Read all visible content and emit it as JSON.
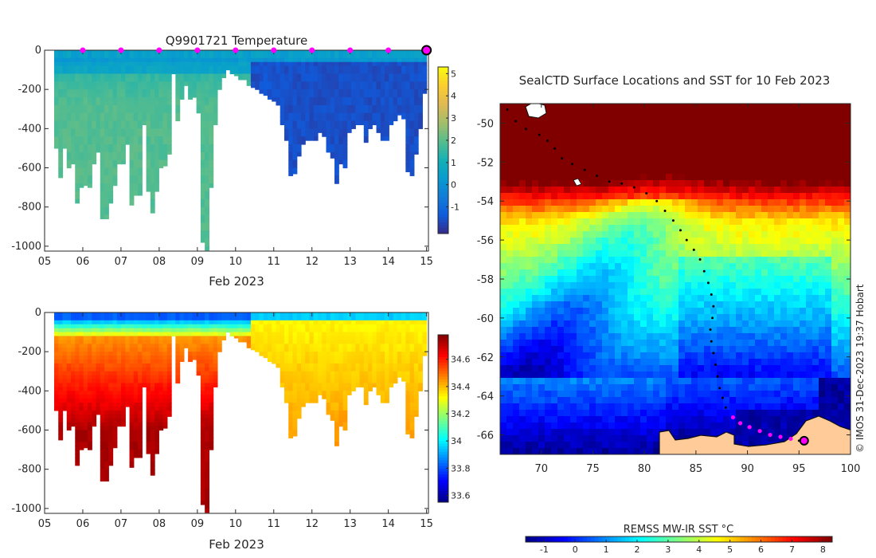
{
  "chart_data": [
    {
      "type": "heatmap",
      "title": "Q9901721  Temperature",
      "xlabel": "Feb 2023",
      "ylabel": "",
      "x_ticks": [
        "05",
        "06",
        "07",
        "08",
        "09",
        "10",
        "11",
        "12",
        "13",
        "14",
        "15"
      ],
      "xlim": [
        5,
        15.05
      ],
      "y_ticks": [
        0,
        -200,
        -400,
        -600,
        -800,
        -1000
      ],
      "ylim": [
        -1025,
        0
      ],
      "colorbar_ticks": [
        5,
        4,
        3,
        2,
        1,
        0,
        -1
      ],
      "colorbar_range": [
        -2.2,
        5.3
      ],
      "marker_days": [
        6,
        7,
        8,
        9,
        10,
        11,
        12,
        13,
        14
      ],
      "last_position_day": 15,
      "profile_count": 96,
      "max_depth_profile": [
        -500,
        -650,
        -500,
        -600,
        -580,
        -780,
        -700,
        -690,
        -700,
        -580,
        -520,
        -860,
        -860,
        -780,
        -690,
        -580,
        -580,
        -480,
        -790,
        -740,
        -740,
        -380,
        -720,
        -830,
        -720,
        -600,
        -590,
        -530,
        -120,
        -360,
        -250,
        -180,
        -250,
        -240,
        -320,
        -980,
        -1020,
        -700,
        -380,
        -200,
        -140,
        -100,
        -120,
        -130,
        -150,
        -150,
        -180,
        -190,
        -200,
        -220,
        -230,
        -250,
        -260,
        -280,
        -380,
        -460,
        -640,
        -630,
        -540,
        -480,
        -460,
        -460,
        -460,
        -420,
        -440,
        -520,
        -550,
        -680,
        -580,
        -600,
        -420,
        -400,
        -380,
        -380,
        -470,
        -400,
        -380,
        -420,
        -460,
        -460,
        -380,
        -360,
        -330,
        -350,
        -620,
        -640,
        -530,
        -400,
        -220
      ]
    },
    {
      "type": "heatmap",
      "title": "",
      "xlabel": "Feb 2023",
      "ylabel": "",
      "x_ticks": [
        "05",
        "06",
        "07",
        "08",
        "09",
        "10",
        "11",
        "12",
        "13",
        "14",
        "15"
      ],
      "xlim": [
        5,
        15.05
      ],
      "y_ticks": [
        0,
        -200,
        -400,
        -600,
        -800,
        -1000
      ],
      "ylim": [
        -1025,
        0
      ],
      "colorbar_ticks": [
        34.6,
        34.4,
        34.2,
        34,
        33.8,
        33.6
      ],
      "colorbar_range": [
        33.55,
        34.78
      ]
    },
    {
      "type": "heatmap",
      "title": "SealCTD Surface Locations and SST for 10 Feb 2023",
      "xlabel": "",
      "ylabel": "",
      "x_ticks": [
        70,
        75,
        80,
        85,
        90,
        95,
        100
      ],
      "xlim": [
        66,
        100
      ],
      "y_ticks": [
        -50,
        -52,
        -54,
        -56,
        -58,
        -60,
        -62,
        -64,
        -66
      ],
      "ylim": [
        -67,
        -49
      ],
      "colorbar_label": "REMSS MW-IR SST °C",
      "colorbar_ticks": [
        -1,
        0,
        1,
        2,
        3,
        4,
        5,
        6,
        7,
        8
      ],
      "colorbar_range": [
        -1.6,
        8.3
      ],
      "credit": "© IMOS 31-Dec-2023 19:37 Hobart",
      "track": [
        [
          66.7,
          -49.3
        ],
        [
          67.5,
          -49.9
        ],
        [
          68.5,
          -50.3
        ],
        [
          69.8,
          -50.6
        ],
        [
          70.6,
          -50.9
        ],
        [
          71.3,
          -51.3
        ],
        [
          72.0,
          -51.8
        ],
        [
          73.0,
          -52.1
        ],
        [
          74.2,
          -52.4
        ],
        [
          75.4,
          -52.7
        ],
        [
          76.6,
          -53.0
        ],
        [
          77.8,
          -53.1
        ],
        [
          79.0,
          -53.3
        ],
        [
          80.2,
          -53.6
        ],
        [
          81.2,
          -54.0
        ],
        [
          82.0,
          -54.5
        ],
        [
          82.8,
          -55.0
        ],
        [
          83.5,
          -55.5
        ],
        [
          84.1,
          -56.0
        ],
        [
          84.8,
          -56.5
        ],
        [
          85.4,
          -57.0
        ],
        [
          85.8,
          -57.6
        ],
        [
          86.2,
          -58.2
        ],
        [
          86.5,
          -58.8
        ],
        [
          86.7,
          -59.4
        ],
        [
          86.6,
          -60.0
        ],
        [
          86.4,
          -60.6
        ],
        [
          86.5,
          -61.2
        ],
        [
          86.7,
          -61.8
        ],
        [
          86.9,
          -62.4
        ],
        [
          87.1,
          -63.0
        ],
        [
          87.3,
          -63.6
        ],
        [
          87.6,
          -64.1
        ],
        [
          87.9,
          -64.6
        ],
        [
          88.6,
          -65.1
        ],
        [
          89.3,
          -65.4
        ],
        [
          90.2,
          -65.6
        ],
        [
          91.2,
          -65.8
        ],
        [
          92.2,
          -66.0
        ],
        [
          93.2,
          -66.1
        ],
        [
          94.2,
          -66.2
        ],
        [
          95.0,
          -66.3
        ]
      ],
      "magenta_points": [
        [
          88.6,
          -65.1
        ],
        [
          89.3,
          -65.4
        ],
        [
          90.2,
          -65.6
        ],
        [
          91.2,
          -65.8
        ],
        [
          92.2,
          -66.0
        ],
        [
          93.2,
          -66.1
        ],
        [
          94.2,
          -66.2
        ]
      ],
      "current_position": [
        95.5,
        -66.3
      ]
    }
  ]
}
